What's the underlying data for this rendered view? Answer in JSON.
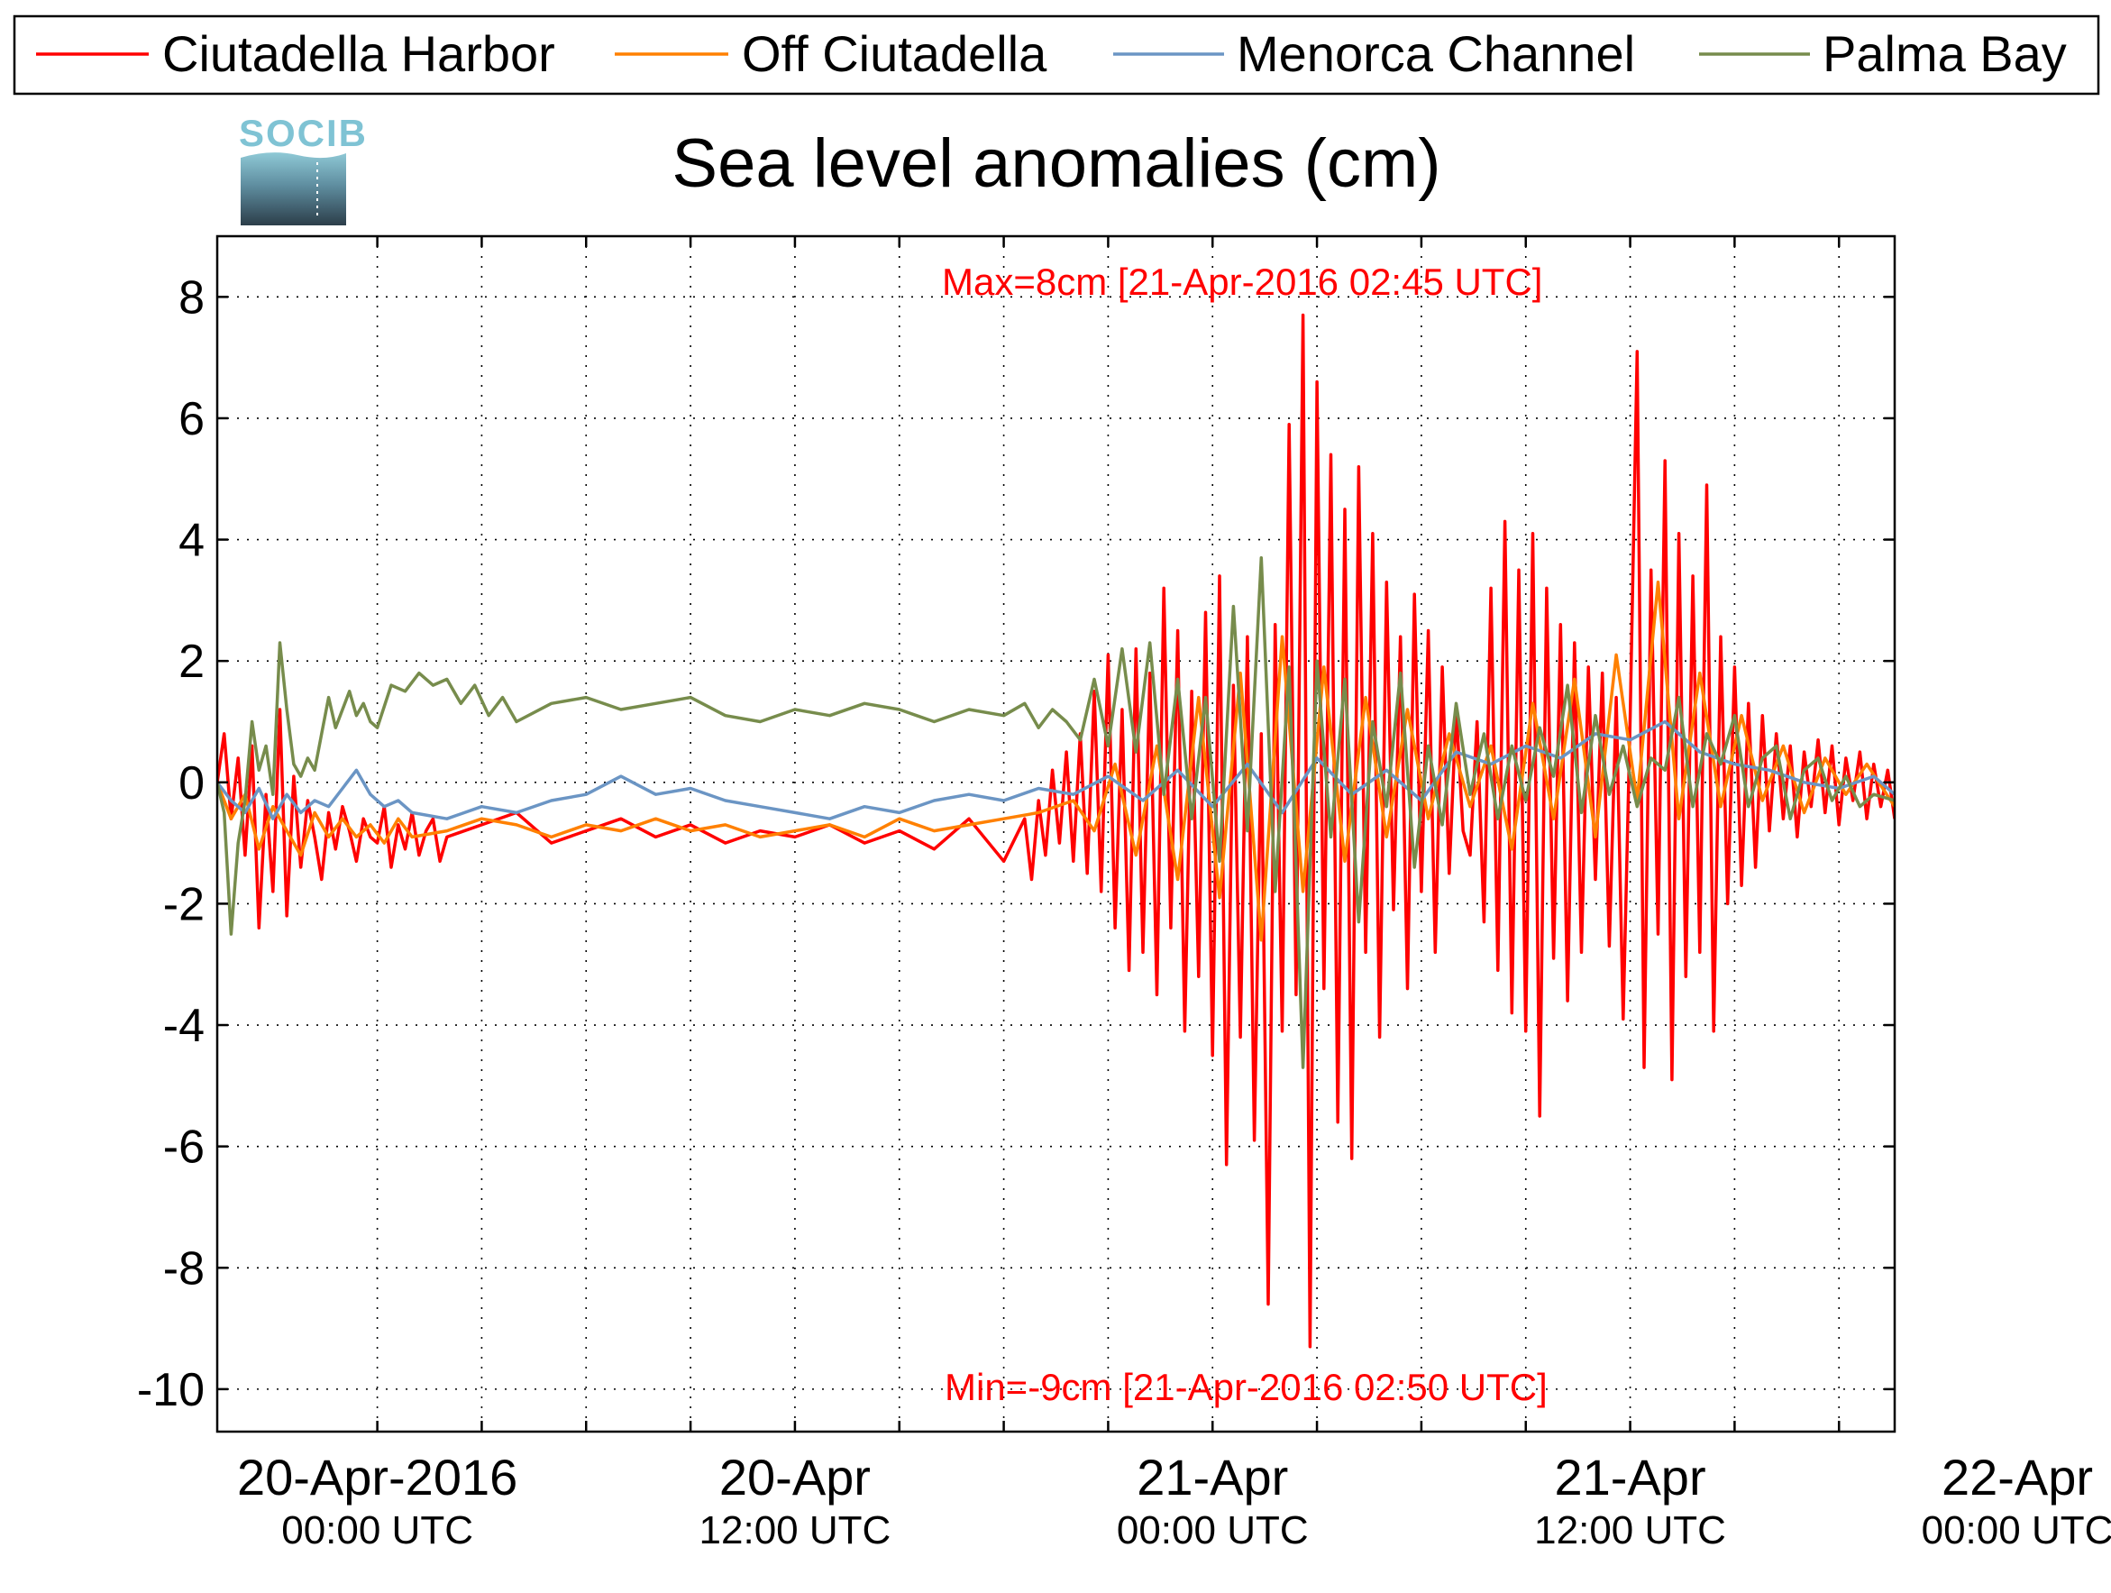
{
  "logo": {
    "text": "SOCIB"
  },
  "chart_data": {
    "type": "line",
    "title": "Sea level anomalies (cm)",
    "xlabel": "",
    "ylabel": "",
    "x_unit": "hours since 20-Apr-2016 00:00 UTC",
    "xlim": [
      -4.6,
      43.6
    ],
    "ylim": [
      -10.7,
      9
    ],
    "y_ticks": [
      8,
      6,
      4,
      2,
      0,
      -2,
      -4,
      -6,
      -8,
      -10
    ],
    "x_ticks": [
      {
        "at": 0,
        "line1": "20-Apr-2016",
        "line2": "00:00 UTC"
      },
      {
        "at": 12,
        "line1": "20-Apr",
        "line2": "12:00 UTC"
      },
      {
        "at": 24,
        "line1": "21-Apr",
        "line2": "00:00 UTC"
      },
      {
        "at": 36,
        "line1": "21-Apr",
        "line2": "12:00 UTC"
      },
      {
        "at": 48,
        "line1": "22-Apr",
        "line2": "00:00 UTC"
      }
    ],
    "grid": true,
    "legend_position": "top",
    "annotations": {
      "max": {
        "text": "Max=8cm [21-Apr-2016 02:45 UTC]",
        "color": "#ff0000"
      },
      "min": {
        "text": "Min=-9cm [21-Apr-2016 02:50 UTC]",
        "color": "#ff0000"
      }
    },
    "series": [
      {
        "name": "Ciutadella Harbor",
        "color": "#ff0000",
        "x": [
          -4.6,
          -4.4,
          -4.2,
          -4.0,
          -3.8,
          -3.6,
          -3.4,
          -3.2,
          -3.0,
          -2.8,
          -2.6,
          -2.4,
          -2.2,
          -2.0,
          -1.8,
          -1.6,
          -1.4,
          -1.2,
          -1.0,
          -0.8,
          -0.6,
          -0.4,
          -0.2,
          0.0,
          0.2,
          0.4,
          0.6,
          0.8,
          1.0,
          1.2,
          1.4,
          1.6,
          1.8,
          2.0,
          3.0,
          4.0,
          5.0,
          6.0,
          7.0,
          8.0,
          9.0,
          10.0,
          11.0,
          12.0,
          13.0,
          14.0,
          15.0,
          16.0,
          17.0,
          18.0,
          18.6,
          18.8,
          19.0,
          19.2,
          19.4,
          19.6,
          19.8,
          20.0,
          20.2,
          20.4,
          20.6,
          20.8,
          21.0,
          21.2,
          21.4,
          21.6,
          21.8,
          22.0,
          22.2,
          22.4,
          22.6,
          22.8,
          23.0,
          23.2,
          23.4,
          23.6,
          23.8,
          24.0,
          24.2,
          24.4,
          24.6,
          24.8,
          25.0,
          25.2,
          25.4,
          25.6,
          25.8,
          26.0,
          26.2,
          26.4,
          26.6,
          26.8,
          27.0,
          27.2,
          27.4,
          27.6,
          27.8,
          28.0,
          28.2,
          28.4,
          28.6,
          28.8,
          29.0,
          29.2,
          29.4,
          29.6,
          29.8,
          30.0,
          30.2,
          30.4,
          30.6,
          30.8,
          31.0,
          31.2,
          31.4,
          31.6,
          31.8,
          32.0,
          32.2,
          32.4,
          32.6,
          32.8,
          33.0,
          33.2,
          33.4,
          33.6,
          33.8,
          34.0,
          34.2,
          34.4,
          34.6,
          34.8,
          35.0,
          35.2,
          35.4,
          35.6,
          35.8,
          36.0,
          36.2,
          36.4,
          36.6,
          36.8,
          37.0,
          37.2,
          37.4,
          37.6,
          37.8,
          38.0,
          38.2,
          38.4,
          38.6,
          38.8,
          39.0,
          39.2,
          39.4,
          39.6,
          39.8,
          40.0,
          40.2,
          40.4,
          40.6,
          40.8,
          41.0,
          41.2,
          41.4,
          41.6,
          41.8,
          42.0,
          42.2,
          42.4,
          42.6,
          42.8,
          43.0,
          43.2,
          43.4,
          43.6
        ],
        "y": [
          0,
          0.8,
          -0.6,
          0.4,
          -1.2,
          0.6,
          -2.4,
          -0.2,
          -1.8,
          1.2,
          -2.2,
          0.1,
          -1.4,
          -0.3,
          -0.9,
          -1.6,
          -0.5,
          -1.1,
          -0.4,
          -0.8,
          -1.3,
          -0.6,
          -0.9,
          -1.0,
          -0.4,
          -1.4,
          -0.7,
          -1.1,
          -0.5,
          -1.2,
          -0.8,
          -0.6,
          -1.3,
          -0.9,
          -0.7,
          -0.5,
          -1.0,
          -0.8,
          -0.6,
          -0.9,
          -0.7,
          -1.0,
          -0.8,
          -0.9,
          -0.7,
          -1.0,
          -0.8,
          -1.1,
          -0.6,
          -1.3,
          -0.6,
          -1.6,
          -0.3,
          -1.2,
          0.2,
          -1.0,
          0.5,
          -1.3,
          0.8,
          -1.5,
          1.5,
          -1.8,
          2.1,
          -2.4,
          1.2,
          -3.1,
          2.2,
          -2.8,
          1.8,
          -3.5,
          3.2,
          -2.4,
          2.5,
          -4.1,
          1.5,
          -3.2,
          2.8,
          -4.5,
          3.4,
          -6.3,
          1.6,
          -4.2,
          2.4,
          -5.9,
          0.8,
          -8.6,
          2.6,
          -4.1,
          5.9,
          -3.5,
          7.7,
          -9.3,
          6.6,
          -3.4,
          5.4,
          -5.6,
          4.5,
          -6.2,
          5.2,
          -2.8,
          4.1,
          -4.2,
          3.3,
          -2.1,
          2.4,
          -3.4,
          3.1,
          -1.8,
          2.5,
          -2.8,
          1.9,
          -1.5,
          1.2,
          -0.8,
          -1.2,
          1.0,
          -2.3,
          3.2,
          -3.1,
          4.3,
          -3.8,
          3.5,
          -4.1,
          4.1,
          -5.5,
          3.2,
          -2.9,
          2.6,
          -3.6,
          2.3,
          -2.8,
          1.9,
          -1.6,
          1.8,
          -2.7,
          1.4,
          -3.9,
          1.1,
          7.1,
          -4.7,
          3.5,
          -2.5,
          5.3,
          -4.9,
          4.1,
          -3.2,
          3.4,
          -2.8,
          4.9,
          -4.1,
          2.4,
          -2.0,
          1.9,
          -1.7,
          1.3,
          -1.4,
          1.1,
          -0.8,
          0.8,
          -0.6,
          0.6,
          -0.9,
          0.5,
          -0.4,
          0.7,
          -0.5,
          0.6,
          -0.7,
          0.4,
          -0.3,
          0.5,
          -0.6,
          0.3,
          -0.4,
          0.2,
          -0.6
        ]
      },
      {
        "name": "Off Ciutadella",
        "color": "#ff8000",
        "x": [
          -4.6,
          -4.2,
          -3.8,
          -3.4,
          -3.0,
          -2.6,
          -2.2,
          -1.8,
          -1.4,
          -1.0,
          -0.6,
          -0.2,
          0.2,
          0.6,
          1.0,
          2.0,
          3.0,
          4.0,
          5.0,
          6.0,
          7.0,
          8.0,
          9.0,
          10.0,
          11.0,
          12.0,
          13.0,
          14.0,
          15.0,
          16.0,
          17.0,
          18.0,
          19.0,
          20.0,
          20.6,
          21.2,
          21.8,
          22.4,
          23.0,
          23.6,
          24.2,
          24.8,
          25.4,
          26.0,
          26.6,
          27.2,
          27.8,
          28.4,
          29.0,
          29.6,
          30.2,
          30.8,
          31.4,
          32.0,
          32.6,
          33.2,
          33.8,
          34.4,
          35.0,
          35.6,
          36.2,
          36.8,
          37.4,
          38.0,
          38.6,
          39.2,
          39.8,
          40.4,
          41.0,
          41.6,
          42.2,
          42.8,
          43.6
        ],
        "y": [
          0,
          -0.6,
          -0.2,
          -1.1,
          -0.4,
          -0.8,
          -1.2,
          -0.5,
          -0.9,
          -0.6,
          -0.9,
          -0.7,
          -1.0,
          -0.6,
          -0.9,
          -0.8,
          -0.6,
          -0.7,
          -0.9,
          -0.7,
          -0.8,
          -0.6,
          -0.8,
          -0.7,
          -0.9,
          -0.8,
          -0.7,
          -0.9,
          -0.6,
          -0.8,
          -0.7,
          -0.6,
          -0.5,
          -0.3,
          -0.8,
          0.3,
          -1.2,
          0.6,
          -1.6,
          1.4,
          -1.9,
          1.8,
          -2.6,
          2.4,
          -1.8,
          1.9,
          -1.3,
          1.4,
          -0.9,
          1.2,
          -0.6,
          0.8,
          -0.4,
          0.6,
          -1.1,
          1.3,
          -0.6,
          1.7,
          -0.9,
          2.1,
          -0.3,
          3.3,
          -0.6,
          1.8,
          -0.4,
          1.1,
          -0.3,
          0.6,
          -0.5,
          0.4,
          -0.2,
          0.3,
          -0.4
        ]
      },
      {
        "name": "Menorca Channel",
        "color": "#6b95c4",
        "x": [
          -4.6,
          -4.2,
          -3.8,
          -3.4,
          -3.0,
          -2.6,
          -2.2,
          -1.8,
          -1.4,
          -1.0,
          -0.6,
          -0.2,
          0.2,
          0.6,
          1.0,
          2.0,
          3.0,
          4.0,
          5.0,
          6.0,
          7.0,
          8.0,
          9.0,
          10.0,
          11.0,
          12.0,
          13.0,
          14.0,
          15.0,
          16.0,
          17.0,
          18.0,
          19.0,
          20.0,
          21.0,
          22.0,
          23.0,
          24.0,
          25.0,
          26.0,
          27.0,
          28.0,
          29.0,
          30.0,
          31.0,
          32.0,
          33.0,
          34.0,
          35.0,
          36.0,
          37.0,
          38.0,
          39.0,
          40.0,
          41.0,
          42.0,
          43.0,
          43.6
        ],
        "y": [
          0,
          -0.3,
          -0.5,
          -0.1,
          -0.6,
          -0.2,
          -0.5,
          -0.3,
          -0.4,
          -0.1,
          0.2,
          -0.2,
          -0.4,
          -0.3,
          -0.5,
          -0.6,
          -0.4,
          -0.5,
          -0.3,
          -0.2,
          0.1,
          -0.2,
          -0.1,
          -0.3,
          -0.4,
          -0.5,
          -0.6,
          -0.4,
          -0.5,
          -0.3,
          -0.2,
          -0.3,
          -0.1,
          -0.2,
          0.1,
          -0.3,
          0.2,
          -0.4,
          0.3,
          -0.5,
          0.4,
          -0.2,
          0.2,
          -0.3,
          0.5,
          0.3,
          0.6,
          0.4,
          0.8,
          0.7,
          1.0,
          0.5,
          0.3,
          0.2,
          0.0,
          -0.1,
          0.1,
          -0.2
        ]
      },
      {
        "name": "Palma Bay",
        "color": "#778c4c",
        "x": [
          -4.6,
          -4.4,
          -4.2,
          -4.0,
          -3.8,
          -3.6,
          -3.4,
          -3.2,
          -3.0,
          -2.8,
          -2.6,
          -2.4,
          -2.2,
          -2.0,
          -1.8,
          -1.6,
          -1.4,
          -1.2,
          -1.0,
          -0.8,
          -0.6,
          -0.4,
          -0.2,
          0.0,
          0.4,
          0.8,
          1.2,
          1.6,
          2.0,
          2.4,
          2.8,
          3.2,
          3.6,
          4.0,
          5.0,
          6.0,
          7.0,
          8.0,
          9.0,
          10.0,
          11.0,
          12.0,
          13.0,
          14.0,
          15.0,
          16.0,
          17.0,
          18.0,
          18.6,
          19.0,
          19.4,
          19.8,
          20.2,
          20.6,
          21.0,
          21.4,
          21.8,
          22.2,
          22.6,
          23.0,
          23.4,
          23.8,
          24.2,
          24.6,
          25.0,
          25.4,
          25.8,
          26.2,
          26.6,
          27.0,
          27.4,
          27.8,
          28.2,
          28.6,
          29.0,
          29.4,
          29.8,
          30.2,
          30.6,
          31.0,
          31.4,
          31.8,
          32.2,
          32.6,
          33.0,
          33.4,
          33.8,
          34.2,
          34.6,
          35.0,
          35.4,
          35.8,
          36.2,
          36.6,
          37.0,
          37.4,
          37.8,
          38.2,
          38.6,
          39.0,
          39.4,
          39.8,
          40.2,
          40.6,
          41.0,
          41.4,
          41.8,
          42.2,
          42.6,
          43.0,
          43.6
        ],
        "y": [
          0,
          -0.5,
          -2.5,
          -1.0,
          -0.3,
          1.0,
          0.2,
          0.6,
          -0.2,
          2.3,
          1.2,
          0.3,
          0.1,
          0.4,
          0.2,
          0.8,
          1.4,
          0.9,
          1.2,
          1.5,
          1.1,
          1.3,
          1.0,
          0.9,
          1.6,
          1.5,
          1.8,
          1.6,
          1.7,
          1.3,
          1.6,
          1.1,
          1.4,
          1.0,
          1.3,
          1.4,
          1.2,
          1.3,
          1.4,
          1.1,
          1.0,
          1.2,
          1.1,
          1.3,
          1.2,
          1.0,
          1.2,
          1.1,
          1.3,
          0.9,
          1.2,
          1.0,
          0.7,
          1.7,
          0.6,
          2.2,
          0.5,
          2.3,
          -0.2,
          1.7,
          -0.6,
          1.4,
          -1.3,
          2.9,
          -0.8,
          3.7,
          -1.8,
          1.9,
          -4.7,
          2.0,
          -0.9,
          1.7,
          -2.3,
          1.0,
          -0.4,
          1.8,
          -1.4,
          0.6,
          -0.7,
          1.3,
          -0.2,
          0.8,
          -0.6,
          0.6,
          -0.3,
          0.9,
          0.1,
          1.6,
          -0.5,
          1.1,
          -0.2,
          0.6,
          -0.4,
          0.4,
          0.2,
          1.4,
          -0.4,
          0.8,
          0.3,
          1.1,
          -0.4,
          0.4,
          0.6,
          -0.6,
          0.2,
          0.4,
          -0.3,
          0.1,
          -0.4,
          -0.2,
          -0.3
        ]
      }
    ]
  }
}
